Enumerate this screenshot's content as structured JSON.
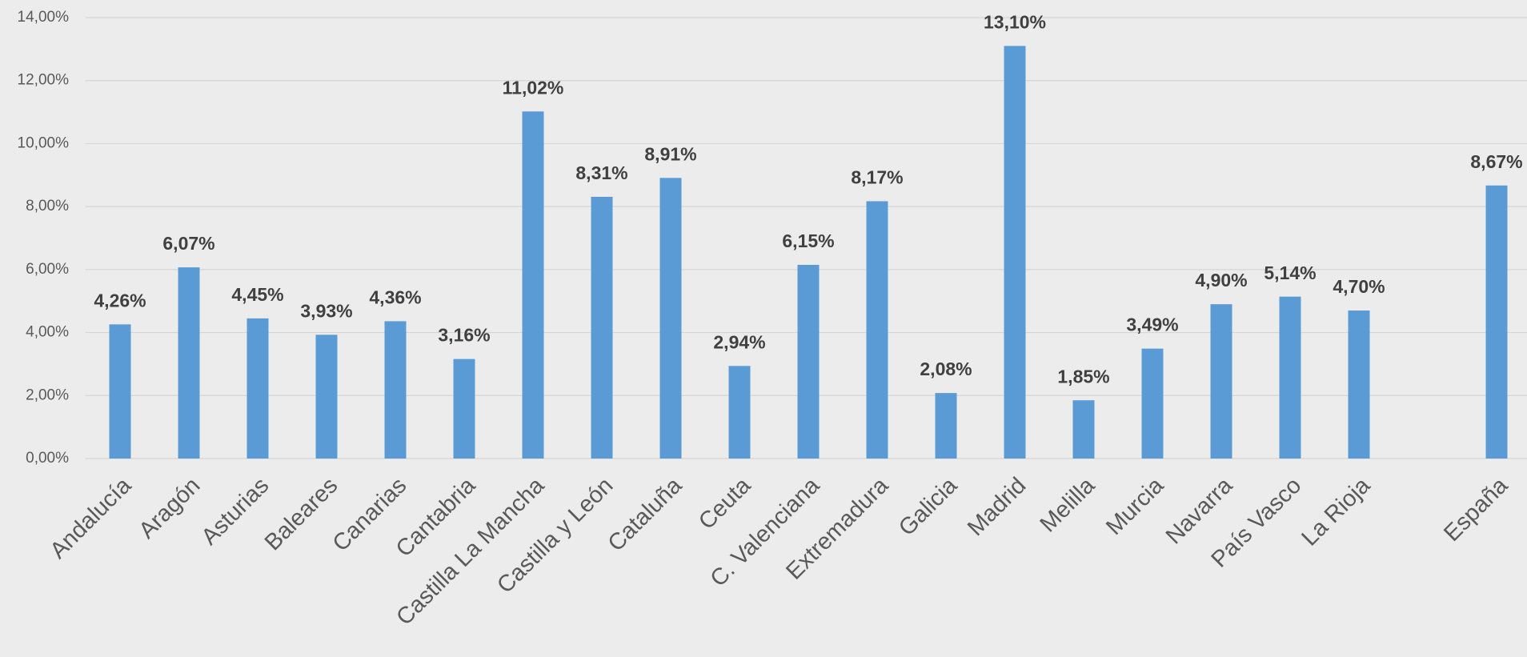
{
  "chart_data": {
    "type": "bar",
    "categories": [
      "Andalucía",
      "Aragón",
      "Asturias",
      "Baleares",
      "Canarias",
      "Cantabria",
      "Castilla La Mancha",
      "Castilla y León",
      "Cataluña",
      "Ceuta",
      "C. Valenciana",
      "Extremadura",
      "Galicia",
      "Madrid",
      "Melilla",
      "Murcia",
      "Navarra",
      "País Vasco",
      "La Rioja",
      null,
      "España"
    ],
    "values": [
      4.26,
      6.07,
      4.45,
      3.93,
      4.36,
      3.16,
      11.02,
      8.31,
      8.91,
      2.94,
      6.15,
      8.17,
      2.08,
      13.1,
      1.85,
      3.49,
      4.9,
      5.14,
      4.7,
      null,
      8.67
    ],
    "value_labels": [
      "4,26%",
      "6,07%",
      "4,45%",
      "3,93%",
      "4,36%",
      "3,16%",
      "11,02%",
      "8,31%",
      "8,91%",
      "2,94%",
      "6,15%",
      "8,17%",
      "2,08%",
      "13,10%",
      "1,85%",
      "3,49%",
      "4,90%",
      "5,14%",
      "4,70%",
      null,
      "8,67%"
    ],
    "color": "#5b9bd5",
    "ylim": [
      0,
      14
    ],
    "yticks": [
      {
        "value": 0,
        "label": "0,00%"
      },
      {
        "value": 2,
        "label": "2,00%"
      },
      {
        "value": 4,
        "label": "4,00%"
      },
      {
        "value": 6,
        "label": "6,00%"
      },
      {
        "value": 8,
        "label": "8,00%"
      },
      {
        "value": 10,
        "label": "10,00%"
      },
      {
        "value": 12,
        "label": "12,00%"
      },
      {
        "value": 14,
        "label": "14,00%"
      }
    ],
    "grid": true
  }
}
